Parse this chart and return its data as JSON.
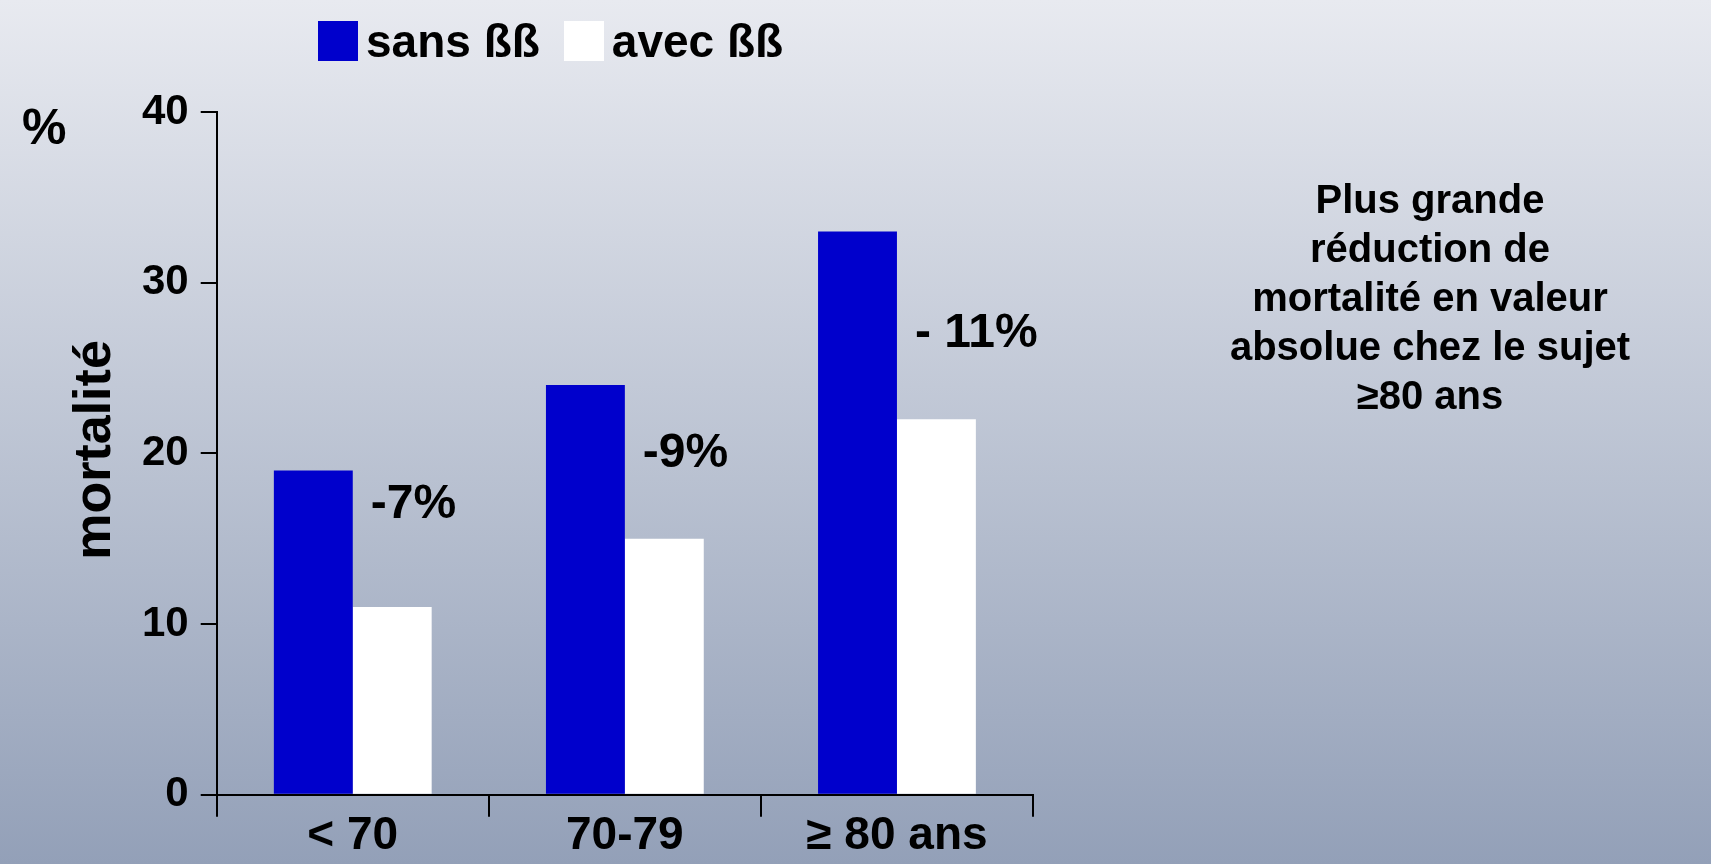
{
  "chart_data": {
    "type": "bar",
    "ylabel": "mortalité",
    "categories": [
      "< 70",
      "70-79",
      "≥ 80 ans"
    ],
    "series": [
      {
        "name": "sans ßß",
        "color": "#0000cc",
        "values": [
          19,
          24,
          33
        ]
      },
      {
        "name": "avec ßß",
        "color": "#ffffff",
        "values": [
          11,
          15,
          22
        ]
      }
    ],
    "ylim": [
      0,
      40
    ],
    "yticks": [
      0,
      10,
      20,
      30,
      40
    ],
    "grid": false,
    "legend": "top",
    "annotations": [
      "%",
      {
        "text": "-7%",
        "x": "< 70",
        "y": 17
      },
      {
        "text": "-9%",
        "x": "70-79",
        "y": 20
      },
      {
        "text": "- 11%",
        "x": "≥ 80 ans",
        "y": 27
      },
      "Plus grande\nréduction de\nmortalité en valeur\nabsolue chez le sujet\n≥80 ans"
    ]
  }
}
